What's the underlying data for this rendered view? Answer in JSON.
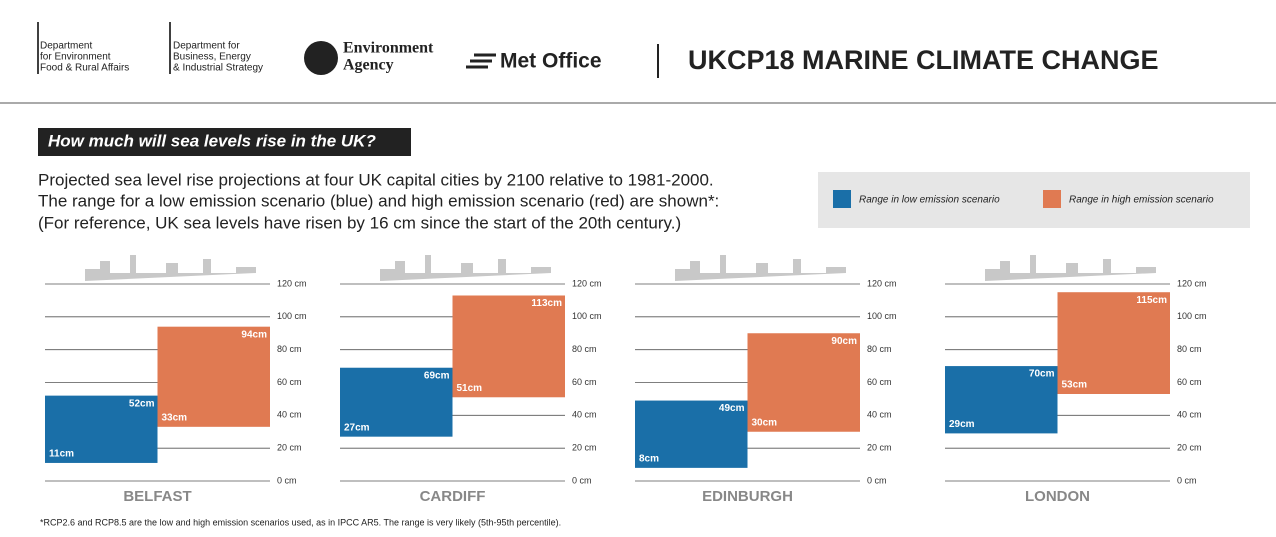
{
  "header": {
    "defra": [
      "Department",
      "for Environment",
      "Food & Rural Affairs"
    ],
    "beis": [
      "Department for",
      "Business, Energy",
      "& Industrial Strategy"
    ],
    "ea": [
      "Environment",
      "Agency"
    ],
    "met_office": "Met Office",
    "title": "UKCP18 MARINE CLIMATE CHANGE"
  },
  "heading": "How much will sea levels rise in the UK?",
  "description": [
    "Projected sea level rise projections at four UK capital cities by 2100 relative to 1981-2000.",
    "The range for a low emission scenario (blue) and high emission scenario (red) are shown*:",
    "(For reference, UK sea levels have risen by 16 cm since the start of the 20th century.)"
  ],
  "legend": [
    {
      "name": "Range in low emission scenario",
      "color": "#1a6fa8"
    },
    {
      "name": "Range in high emission scenario",
      "color": "#e07a52"
    }
  ],
  "footnote": "*RCP2.6 and RCP8.5 are the low and high emission scenarios used, as in IPCC AR5. The range is very likely (5th-95th percentile).",
  "chart_data": [
    {
      "type": "floating-bar",
      "title": "BELFAST",
      "ylim": [
        0,
        120
      ],
      "yticks": [
        {
          "value": 0,
          "label": "0 cm"
        },
        {
          "value": 20,
          "label": "20 cm"
        },
        {
          "value": 40,
          "label": "40 cm"
        },
        {
          "value": 60,
          "label": "60 cm"
        },
        {
          "value": 80,
          "label": "80 cm"
        },
        {
          "value": 100,
          "label": "100 cm"
        },
        {
          "value": 120,
          "label": "120 cm"
        }
      ],
      "series": [
        {
          "color": "#1a6fa8",
          "values": [
            11,
            52
          ],
          "value_labels": [
            "11cm",
            "52cm"
          ]
        },
        {
          "color": "#e07a52",
          "values": [
            33,
            94
          ],
          "value_labels": [
            "33cm",
            "94cm"
          ]
        }
      ]
    },
    {
      "type": "floating-bar",
      "title": "CARDIFF",
      "ylim": [
        0,
        120
      ],
      "yticks": [
        {
          "value": 0,
          "label": "0 cm"
        },
        {
          "value": 20,
          "label": "20 cm"
        },
        {
          "value": 40,
          "label": "40 cm"
        },
        {
          "value": 60,
          "label": "60 cm"
        },
        {
          "value": 80,
          "label": "80 cm"
        },
        {
          "value": 100,
          "label": "100 cm"
        },
        {
          "value": 120,
          "label": "120 cm"
        }
      ],
      "series": [
        {
          "color": "#1a6fa8",
          "values": [
            27,
            69
          ],
          "value_labels": [
            "27cm",
            "69cm"
          ]
        },
        {
          "color": "#e07a52",
          "values": [
            51,
            113
          ],
          "value_labels": [
            "51cm",
            "113cm"
          ]
        }
      ]
    },
    {
      "type": "floating-bar",
      "title": "EDINBURGH",
      "ylim": [
        0,
        120
      ],
      "yticks": [
        {
          "value": 0,
          "label": "0 cm"
        },
        {
          "value": 20,
          "label": "20 cm"
        },
        {
          "value": 40,
          "label": "40 cm"
        },
        {
          "value": 60,
          "label": "60 cm"
        },
        {
          "value": 80,
          "label": "80 cm"
        },
        {
          "value": 100,
          "label": "100 cm"
        },
        {
          "value": 120,
          "label": "120 cm"
        }
      ],
      "series": [
        {
          "color": "#1a6fa8",
          "values": [
            8,
            49
          ],
          "value_labels": [
            "8cm",
            "49cm"
          ]
        },
        {
          "color": "#e07a52",
          "values": [
            30,
            90
          ],
          "value_labels": [
            "30cm",
            "90cm"
          ]
        }
      ]
    },
    {
      "type": "floating-bar",
      "title": "LONDON",
      "ylim": [
        0,
        120
      ],
      "yticks": [
        {
          "value": 0,
          "label": "0 cm"
        },
        {
          "value": 20,
          "label": "20 cm"
        },
        {
          "value": 40,
          "label": "40 cm"
        },
        {
          "value": 60,
          "label": "60 cm"
        },
        {
          "value": 80,
          "label": "80 cm"
        },
        {
          "value": 100,
          "label": "100 cm"
        },
        {
          "value": 120,
          "label": "120 cm"
        }
      ],
      "series": [
        {
          "color": "#1a6fa8",
          "values": [
            29,
            70
          ],
          "value_labels": [
            "29cm",
            "70cm"
          ]
        },
        {
          "color": "#e07a52",
          "values": [
            53,
            115
          ],
          "value_labels": [
            "53cm",
            "115cm"
          ]
        }
      ]
    }
  ]
}
